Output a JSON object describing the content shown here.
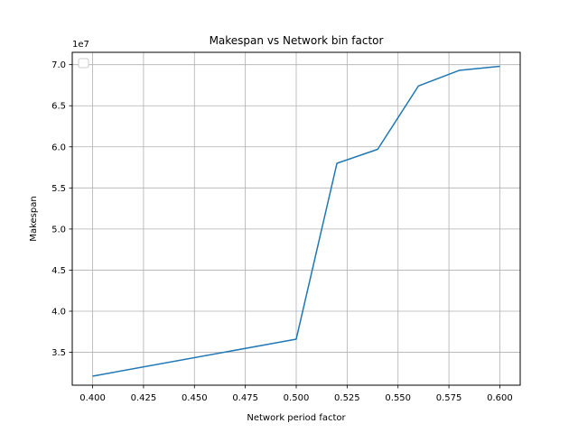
{
  "chart_data": {
    "type": "line",
    "title": "Makespan vs Network bin factor",
    "xlabel": "Network period factor",
    "ylabel": "Makespan",
    "y_offset_label": "1e7",
    "xlim": [
      0.39,
      0.61
    ],
    "ylim": [
      3.1,
      7.15
    ],
    "x_ticks": [
      0.4,
      0.425,
      0.45,
      0.475,
      0.5,
      0.525,
      0.55,
      0.575,
      0.6
    ],
    "x_tick_labels": [
      "0.400",
      "0.425",
      "0.450",
      "0.475",
      "0.500",
      "0.525",
      "0.550",
      "0.575",
      "0.600"
    ],
    "y_ticks": [
      3.5,
      4.0,
      4.5,
      5.0,
      5.5,
      6.0,
      6.5,
      7.0
    ],
    "y_tick_labels": [
      "3.5",
      "4.0",
      "4.5",
      "5.0",
      "5.5",
      "6.0",
      "6.5",
      "7.0"
    ],
    "grid": true,
    "legend": "upper left (empty)",
    "series": [
      {
        "color": "#1f77b4",
        "x": [
          0.4,
          0.5,
          0.52,
          0.54,
          0.56,
          0.58,
          0.6
        ],
        "y": [
          3.21,
          3.66,
          5.8,
          5.97,
          6.74,
          6.93,
          6.98
        ]
      }
    ]
  }
}
